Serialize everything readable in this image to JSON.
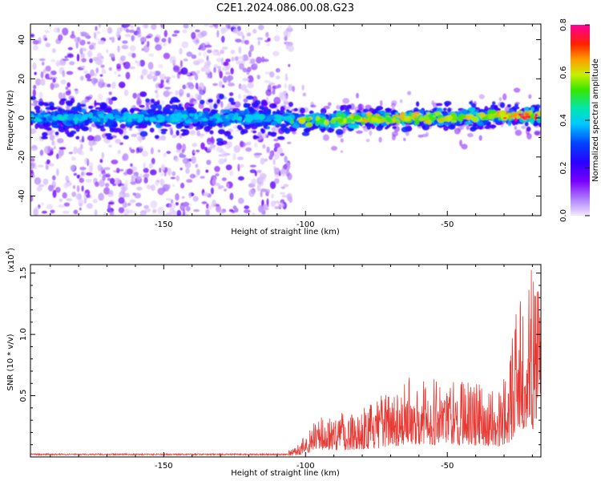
{
  "title": "C2E1.2024.086.00.08.G23",
  "colors": {
    "snr_line": "#e83a35",
    "axis": "#000000"
  },
  "chart_data": [
    {
      "type": "heatmap",
      "xlabel": "Height of straight line (km)",
      "ylabel": "Frequency (Hz)",
      "xlim": [
        -197,
        -17
      ],
      "ylim": [
        -50,
        48
      ],
      "x_ticks": [
        -150,
        -100,
        -50
      ],
      "y_ticks": [
        -40,
        -20,
        0,
        20,
        40
      ],
      "colorbar": {
        "label": "Normalized spectral amplitude",
        "range": [
          0.0,
          0.8
        ],
        "ticks": [
          0.0,
          0.2,
          0.4,
          0.6,
          0.8
        ],
        "colormap": "rainbow (purple-blue-cyan-green-yellow-red-magenta)"
      },
      "band": {
        "description": "Bright signal band centered near 0 Hz across heights; broad scattered low-amplitude noise at heights below -105 km",
        "noise_region_x": [
          -197,
          -105
        ],
        "center_freq_hz": 0,
        "band_halfwidth_hz": 8,
        "peak_amplitude": 0.8,
        "peak_height_km": -22
      }
    },
    {
      "type": "line",
      "xlabel": "Height of straight line (km)",
      "ylabel": "SNR (10 * v/v)",
      "y_multiplier": "(x10",
      "y_multiplier_exp": "4",
      "y_multiplier_close": ")",
      "xlim": [
        -197,
        -17
      ],
      "ylim": [
        0,
        1.57
      ],
      "x_ticks": [
        -150,
        -100,
        -50
      ],
      "y_ticks": [
        0.5,
        1.0,
        1.5
      ],
      "y_tick_labels": [
        "0.5",
        "1.0",
        "1.5"
      ],
      "envelope": [
        {
          "x": -197,
          "y": 0.02
        },
        {
          "x": -110,
          "y": 0.02
        },
        {
          "x": -104,
          "y": 0.07
        },
        {
          "x": -95,
          "y": 0.35
        },
        {
          "x": -85,
          "y": 0.38
        },
        {
          "x": -75,
          "y": 0.45
        },
        {
          "x": -70,
          "y": 0.6
        },
        {
          "x": -60,
          "y": 0.68
        },
        {
          "x": -50,
          "y": 0.66
        },
        {
          "x": -40,
          "y": 0.62
        },
        {
          "x": -32,
          "y": 0.55
        },
        {
          "x": -28,
          "y": 0.8
        },
        {
          "x": -25,
          "y": 1.4
        },
        {
          "x": -21,
          "y": 1.55
        },
        {
          "x": -17,
          "y": 1.4
        }
      ]
    }
  ]
}
